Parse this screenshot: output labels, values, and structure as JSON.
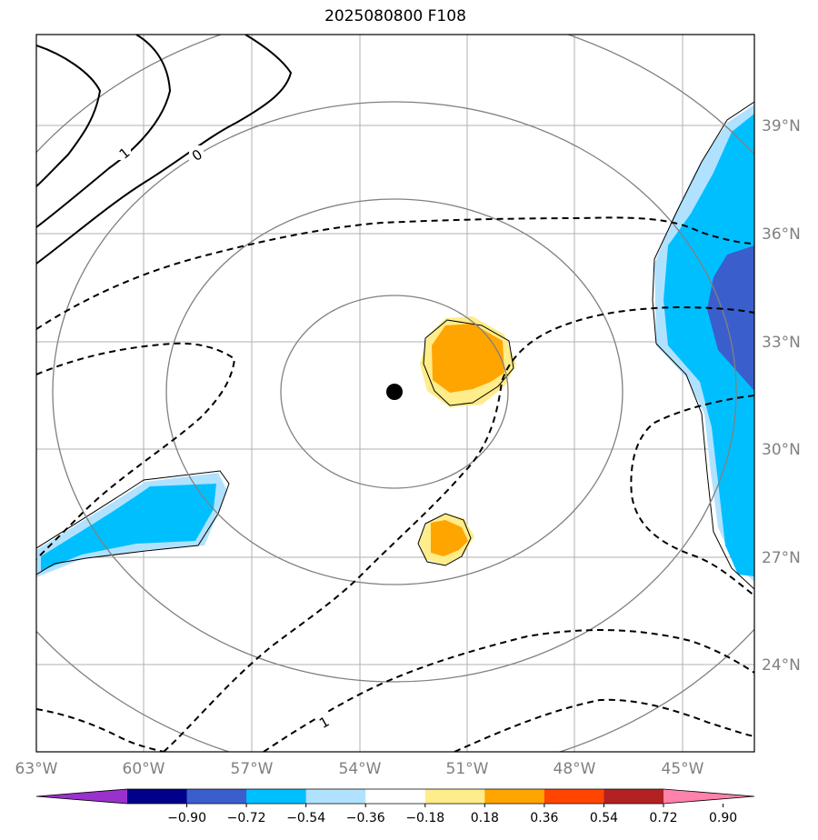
{
  "title": "2025080800 F108",
  "map": {
    "lon_ticks": [
      "63°W",
      "60°W",
      "57°W",
      "54°W",
      "51°W",
      "48°W",
      "45°W"
    ],
    "lat_ticks": [
      "39°N",
      "36°N",
      "33°N",
      "30°N",
      "27°N",
      "24°N"
    ],
    "contour_labels": [
      "1",
      "0",
      "1"
    ],
    "center_marker": "storm-center-dot"
  },
  "colorbar": {
    "ticks": [
      "−0.90",
      "−0.72",
      "−0.54",
      "−0.36",
      "−0.18",
      "0.18",
      "0.36",
      "0.54",
      "0.72",
      "0.90"
    ],
    "colors": [
      "#9932CC",
      "#00008B",
      "#3A5FCD",
      "#00BFFF",
      "#B0E2FF",
      "#FFFFFF",
      "#FFEC8B",
      "#FFA500",
      "#FF4500",
      "#B22222",
      "#FF82AB"
    ]
  }
}
